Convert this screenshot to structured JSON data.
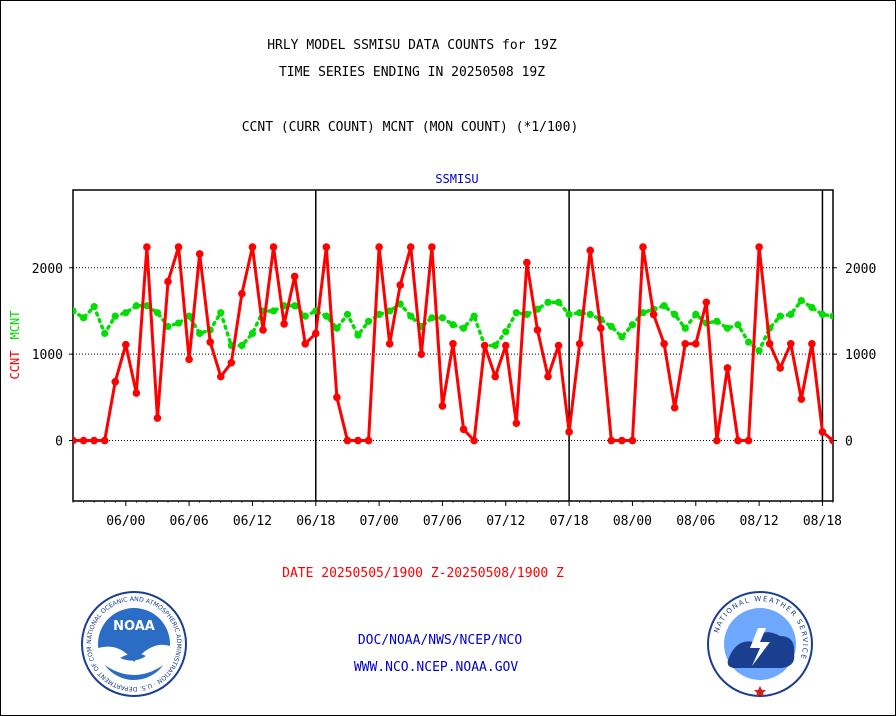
{
  "header": {
    "line1": "HRLY MODEL SSMISU DATA COUNTS for 19Z",
    "line2": "TIME SERIES ENDING IN 20250508 19Z",
    "line3": "CCNT (CURR COUNT) MCNT (MON COUNT) (*1/100)"
  },
  "footer": {
    "date_range": "DATE 20250505/1900 Z-20250508/1900 Z",
    "org_path": "DOC/NOAA/NWS/NCEP/NCO",
    "website": "WWW.NCO.NCEP.NOAA.GOV"
  },
  "logos": {
    "noaa_text": "NOAA",
    "noaa_ring_text": "NATIONAL OCEANIC AND ATMOSPHERIC ADMINISTRATION · U.S. DEPARTMENT OF COMMERCE",
    "nws_ring_text": "NATIONAL WEATHER SERVICE"
  },
  "colors": {
    "ccnt": "#ff0000",
    "mcnt": "#00dd00",
    "title": "#0000cc",
    "date": "#ff0000"
  },
  "chart_data": {
    "type": "line",
    "title": "SSMISU",
    "ylabel_left_1": "CCNT",
    "ylabel_left_2": "MCNT",
    "ylim": [
      -700,
      2900
    ],
    "yticks": [
      0,
      1000,
      2000
    ],
    "ytick_labels": [
      "0",
      "1000",
      "2000"
    ],
    "xticks": [
      "06/00",
      "06/06",
      "06/12",
      "06/18",
      "07/00",
      "07/06",
      "07/12",
      "07/18",
      "08/00",
      "08/06",
      "08/12",
      "08/18"
    ],
    "x_start_hour": 19,
    "x_end_hour": 91,
    "day_boundaries_hour": [
      42,
      66,
      90
    ],
    "grid": true,
    "series": [
      {
        "name": "CCNT",
        "x": [
          19,
          20,
          21,
          22,
          23,
          24,
          25,
          26,
          27,
          28,
          29,
          30,
          31,
          32,
          33,
          34,
          35,
          36,
          37,
          38,
          39,
          40,
          41,
          42,
          43,
          44,
          45,
          46,
          47,
          48,
          49,
          50,
          51,
          52,
          53,
          54,
          55,
          56,
          57,
          58,
          59,
          60,
          61,
          62,
          63,
          64,
          65,
          66,
          67,
          68,
          69,
          70,
          71,
          72,
          73,
          74,
          75,
          76,
          77,
          78,
          79,
          80,
          81,
          82,
          83,
          84,
          85,
          86,
          87,
          88,
          89,
          90,
          91
        ],
        "values": [
          0,
          0,
          0,
          0,
          680,
          1110,
          550,
          2240,
          260,
          1840,
          2240,
          940,
          2160,
          1140,
          740,
          900,
          1700,
          2240,
          1280,
          2240,
          1350,
          1900,
          1120,
          1240,
          2240,
          500,
          0,
          0,
          0,
          2240,
          1120,
          1800,
          2240,
          1000,
          2240,
          400,
          1120,
          130,
          0,
          1100,
          740,
          1100,
          200,
          2060,
          1280,
          740,
          1100,
          100,
          1120,
          2200,
          1300,
          0,
          0,
          0,
          2240,
          1460,
          1120,
          380,
          1120,
          1120,
          1600,
          0,
          840,
          0,
          0,
          2240,
          1120,
          840,
          1120,
          480,
          1120,
          100,
          0
        ]
      },
      {
        "name": "MCNT",
        "x": [
          19,
          20,
          21,
          22,
          23,
          24,
          25,
          26,
          27,
          28,
          29,
          30,
          31,
          32,
          33,
          34,
          35,
          36,
          37,
          38,
          39,
          40,
          41,
          42,
          43,
          44,
          45,
          46,
          47,
          48,
          49,
          50,
          51,
          52,
          53,
          54,
          55,
          56,
          57,
          58,
          59,
          60,
          61,
          62,
          63,
          64,
          65,
          66,
          67,
          68,
          69,
          70,
          71,
          72,
          73,
          74,
          75,
          76,
          77,
          78,
          79,
          80,
          81,
          82,
          83,
          84,
          85,
          86,
          87,
          88,
          89,
          90,
          91
        ],
        "values": [
          1500,
          1420,
          1550,
          1240,
          1440,
          1480,
          1560,
          1560,
          1480,
          1320,
          1360,
          1440,
          1240,
          1280,
          1480,
          1100,
          1100,
          1240,
          1500,
          1500,
          1560,
          1560,
          1440,
          1500,
          1440,
          1300,
          1460,
          1220,
          1380,
          1460,
          1500,
          1580,
          1440,
          1320,
          1420,
          1420,
          1340,
          1300,
          1440,
          1100,
          1100,
          1260,
          1480,
          1460,
          1520,
          1600,
          1600,
          1460,
          1480,
          1460,
          1400,
          1320,
          1200,
          1340,
          1480,
          1520,
          1560,
          1460,
          1300,
          1460,
          1360,
          1380,
          1300,
          1340,
          1140,
          1040,
          1300,
          1440,
          1460,
          1620,
          1540,
          1460,
          1440
        ]
      }
    ]
  }
}
